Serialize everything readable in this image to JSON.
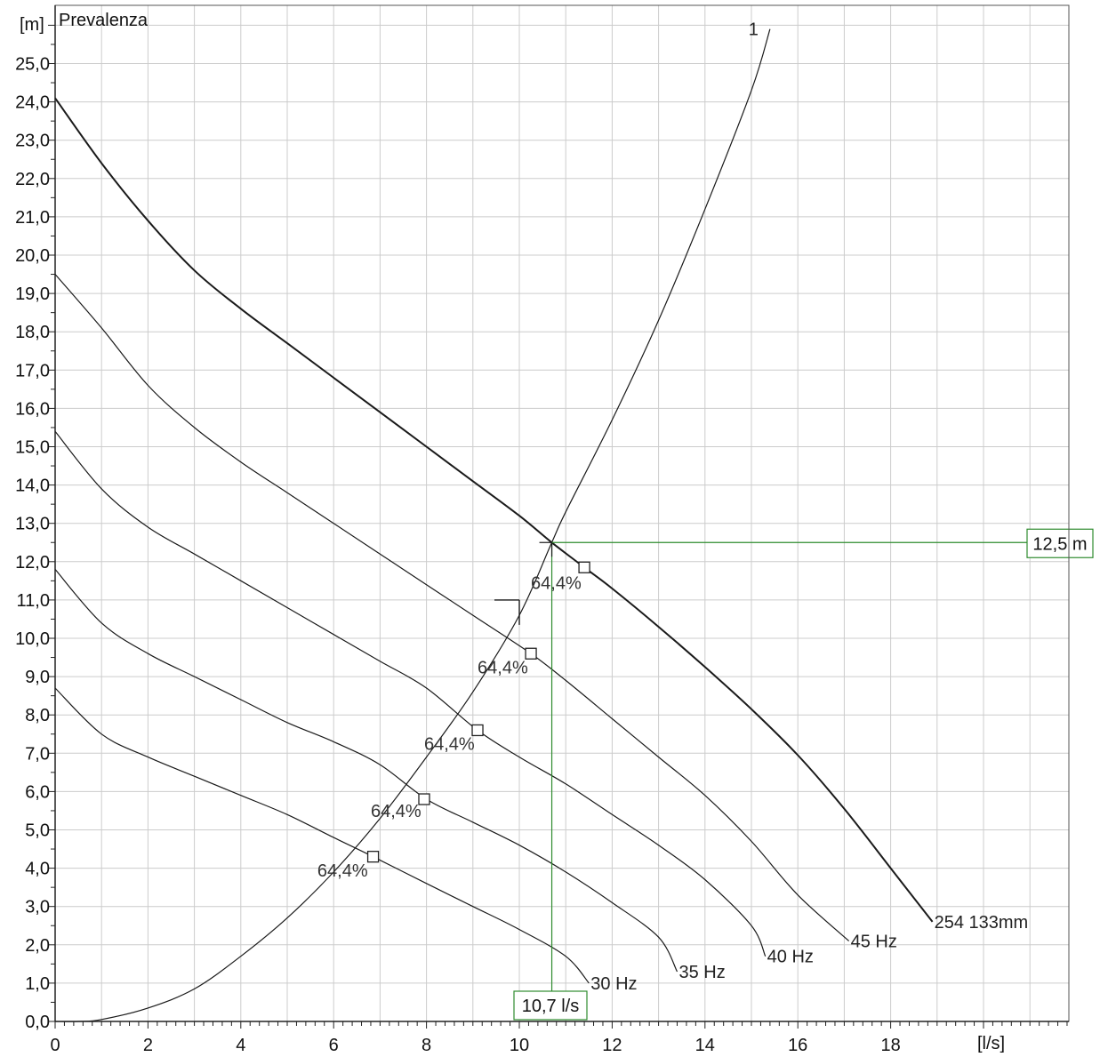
{
  "chart_data": {
    "type": "line",
    "ylabel": "Prevalenza",
    "y_unit": "[m]",
    "x_unit": "[l/s]",
    "xlim": [
      0,
      21.8
    ],
    "ylim": [
      0,
      26
    ],
    "x_ticks": [
      0,
      2,
      4,
      6,
      8,
      10,
      12,
      14,
      16,
      18
    ],
    "x_tick_labels": [
      "0",
      "2",
      "4",
      "6",
      "8",
      "10",
      "12",
      "14",
      "16",
      "18"
    ],
    "y_ticks": [
      0,
      1,
      2,
      3,
      4,
      5,
      6,
      7,
      8,
      9,
      10,
      11,
      12,
      13,
      14,
      15,
      16,
      17,
      18,
      19,
      20,
      21,
      22,
      23,
      24,
      25
    ],
    "y_tick_labels": [
      "0,0",
      "1,0",
      "2,0",
      "3,0",
      "4,0",
      "5,0",
      "6,0",
      "7,0",
      "8,0",
      "9,0",
      "10,0",
      "11,0",
      "12,0",
      "13,0",
      "14,0",
      "15,0",
      "16,0",
      "17,0",
      "18,0",
      "19,0",
      "20,0",
      "21,0",
      "22,0",
      "23,0",
      "24,0",
      "25,0"
    ],
    "grid": true,
    "series": [
      {
        "name": "254 133mm",
        "color": "#1a1a1a",
        "weight": "bold",
        "points": [
          [
            0,
            24.1
          ],
          [
            1,
            22.4
          ],
          [
            2,
            20.9
          ],
          [
            3,
            19.6
          ],
          [
            4,
            18.6
          ],
          [
            5,
            17.7
          ],
          [
            6,
            16.8
          ],
          [
            7,
            15.9
          ],
          [
            8,
            15.0
          ],
          [
            9,
            14.1
          ],
          [
            10,
            13.2
          ],
          [
            10.7,
            12.5
          ],
          [
            11.4,
            11.85
          ],
          [
            12,
            11.3
          ],
          [
            13,
            10.3
          ],
          [
            14,
            9.25
          ],
          [
            15,
            8.15
          ],
          [
            16,
            6.95
          ],
          [
            17,
            5.55
          ],
          [
            18,
            4.0
          ],
          [
            18.9,
            2.6
          ]
        ]
      },
      {
        "name": "45 Hz",
        "color": "#1a1a1a",
        "points": [
          [
            0,
            19.5
          ],
          [
            1,
            18.1
          ],
          [
            2,
            16.6
          ],
          [
            3,
            15.5
          ],
          [
            4,
            14.6
          ],
          [
            5,
            13.8
          ],
          [
            6,
            13.0
          ],
          [
            7,
            12.2
          ],
          [
            8,
            11.4
          ],
          [
            9,
            10.6
          ],
          [
            10.25,
            9.6
          ],
          [
            11,
            8.9
          ],
          [
            12,
            7.9
          ],
          [
            13,
            6.9
          ],
          [
            14,
            5.9
          ],
          [
            15,
            4.7
          ],
          [
            16,
            3.3
          ],
          [
            17.1,
            2.1
          ]
        ]
      },
      {
        "name": "40 Hz",
        "color": "#1a1a1a",
        "points": [
          [
            0,
            15.4
          ],
          [
            1,
            13.9
          ],
          [
            2,
            12.9
          ],
          [
            3,
            12.2
          ],
          [
            4,
            11.5
          ],
          [
            5,
            10.8
          ],
          [
            6,
            10.1
          ],
          [
            7,
            9.4
          ],
          [
            8,
            8.7
          ],
          [
            9.1,
            7.6
          ],
          [
            10,
            6.9
          ],
          [
            11,
            6.2
          ],
          [
            12,
            5.4
          ],
          [
            13,
            4.6
          ],
          [
            14,
            3.7
          ],
          [
            15,
            2.5
          ],
          [
            15.3,
            1.7
          ]
        ]
      },
      {
        "name": "35 Hz",
        "color": "#1a1a1a",
        "points": [
          [
            0,
            11.8
          ],
          [
            1,
            10.4
          ],
          [
            2,
            9.6
          ],
          [
            3,
            9.0
          ],
          [
            4,
            8.4
          ],
          [
            5,
            7.8
          ],
          [
            6,
            7.3
          ],
          [
            7,
            6.7
          ],
          [
            8,
            5.8
          ],
          [
            9,
            5.2
          ],
          [
            10,
            4.6
          ],
          [
            11,
            3.9
          ],
          [
            12,
            3.1
          ],
          [
            13,
            2.2
          ],
          [
            13.4,
            1.3
          ]
        ]
      },
      {
        "name": "30 Hz",
        "color": "#1a1a1a",
        "points": [
          [
            0,
            8.7
          ],
          [
            1,
            7.5
          ],
          [
            2,
            6.9
          ],
          [
            3,
            6.4
          ],
          [
            4,
            5.9
          ],
          [
            5,
            5.4
          ],
          [
            6,
            4.8
          ],
          [
            6.85,
            4.3
          ],
          [
            8,
            3.6
          ],
          [
            9,
            3.0
          ],
          [
            10,
            2.4
          ],
          [
            11,
            1.7
          ],
          [
            11.5,
            1.0
          ]
        ]
      },
      {
        "name": "1",
        "color": "#1a1a1a",
        "points": [
          [
            0,
            0
          ],
          [
            0.5,
            0
          ],
          [
            1,
            0.05
          ],
          [
            2,
            0.35
          ],
          [
            3,
            0.85
          ],
          [
            4,
            1.7
          ],
          [
            5,
            2.7
          ],
          [
            6,
            3.9
          ],
          [
            7,
            5.3
          ],
          [
            8,
            6.9
          ],
          [
            9,
            8.6
          ],
          [
            10,
            10.6
          ],
          [
            10.7,
            12.5
          ],
          [
            11,
            13.3
          ],
          [
            12,
            15.7
          ],
          [
            13,
            18.3
          ],
          [
            14,
            21.2
          ],
          [
            15,
            24.3
          ],
          [
            15.4,
            25.9
          ]
        ]
      }
    ],
    "series_labels": [
      {
        "text": "254 133mm",
        "x": 18.9,
        "y": 2.6
      },
      {
        "text": "45 Hz",
        "x": 17.1,
        "y": 2.1
      },
      {
        "text": "40 Hz",
        "x": 15.3,
        "y": 1.7
      },
      {
        "text": "35 Hz",
        "x": 13.4,
        "y": 1.3
      },
      {
        "text": "30 Hz",
        "x": 11.5,
        "y": 1.0
      },
      {
        "text": "1",
        "x": 14.9,
        "y": 25.9
      }
    ],
    "efficiency_points": [
      {
        "x": 11.4,
        "y": 11.85,
        "label": "64,4%",
        "label_x": 10.25,
        "label_y": 11.45
      },
      {
        "x": 10.25,
        "y": 9.6,
        "label": "64,4%",
        "label_x": 9.1,
        "label_y": 9.25
      },
      {
        "x": 9.1,
        "y": 7.6,
        "label": "64,4%",
        "label_x": 7.95,
        "label_y": 7.25
      },
      {
        "x": 7.95,
        "y": 5.8,
        "label": "64,4%",
        "label_x": 6.8,
        "label_y": 5.5
      },
      {
        "x": 6.85,
        "y": 4.3,
        "label": "64,4%",
        "label_x": 5.65,
        "label_y": 3.95
      }
    ],
    "operating_point": {
      "x": 10.7,
      "y": 12.5,
      "x_label": "10,7 l/s",
      "y_label": "12,5 m",
      "color": "#2e8b2e"
    },
    "duty_point": {
      "x": 10.0,
      "y": 11.0
    }
  }
}
